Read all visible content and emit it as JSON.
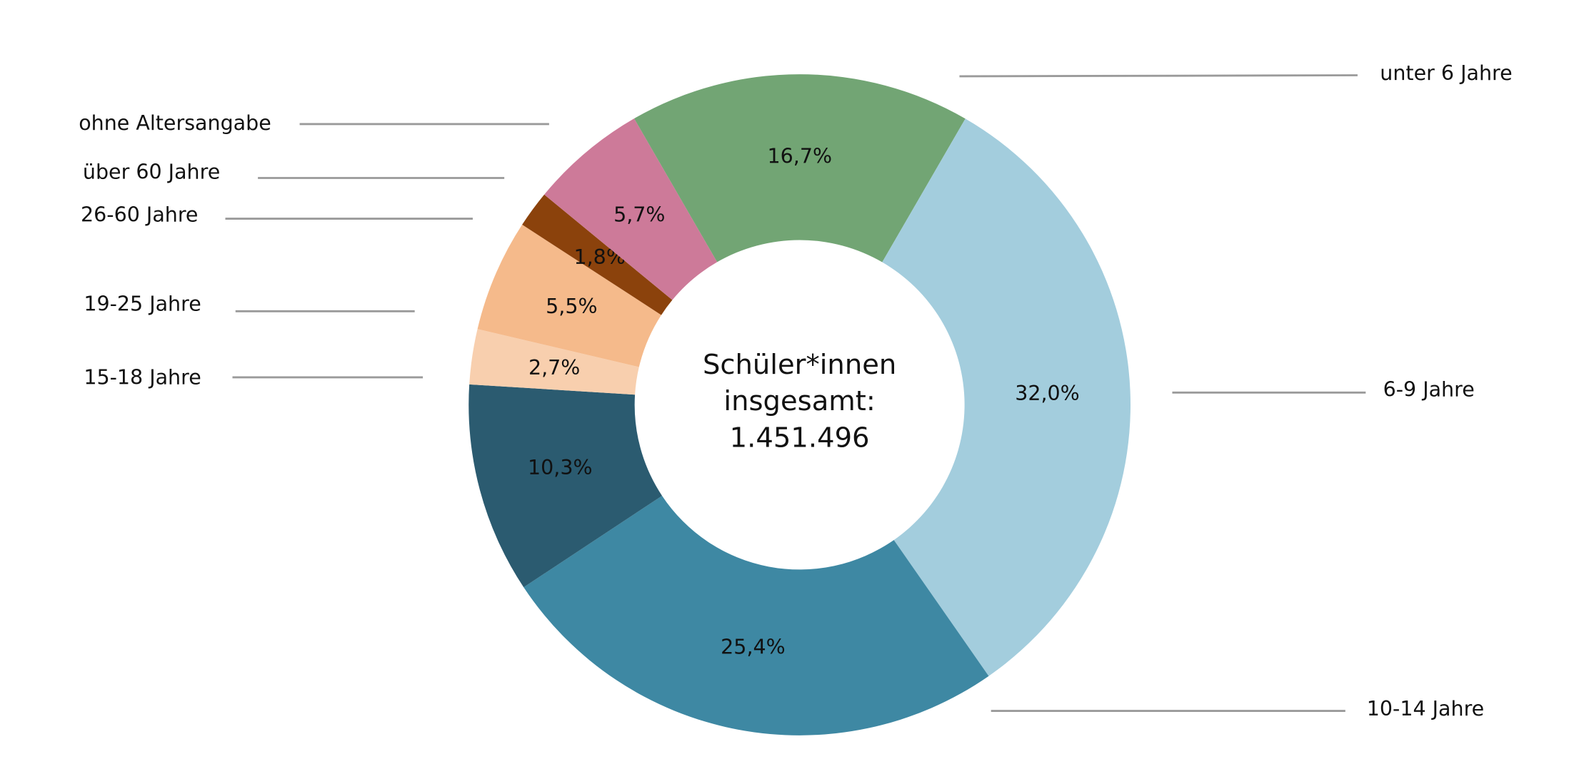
{
  "chart_data": {
    "type": "donut",
    "center_text": [
      "Schüler*innen",
      "insgesamt:",
      "1.451.496"
    ],
    "categories": [
      "unter 6 Jahre",
      "6-9 Jahre",
      "10-14 Jahre",
      "15-18 Jahre",
      "19-25 Jahre",
      "26-60 Jahre",
      "über 60 Jahre",
      "ohne Altersangabe"
    ],
    "values": [
      16.7,
      32.0,
      25.4,
      10.3,
      2.7,
      5.5,
      1.8,
      5.7
    ],
    "value_labels": [
      "16,7%",
      "32,0%",
      "25,4%",
      "10,3%",
      "2,7%",
      "5,5%",
      "1,8%",
      "5,7%"
    ],
    "colors": [
      "#72a574",
      "#a3cddd",
      "#3e88a3",
      "#2b5b70",
      "#f8cfae",
      "#f5ba8b",
      "#8b420c",
      "#cd7a99"
    ]
  }
}
